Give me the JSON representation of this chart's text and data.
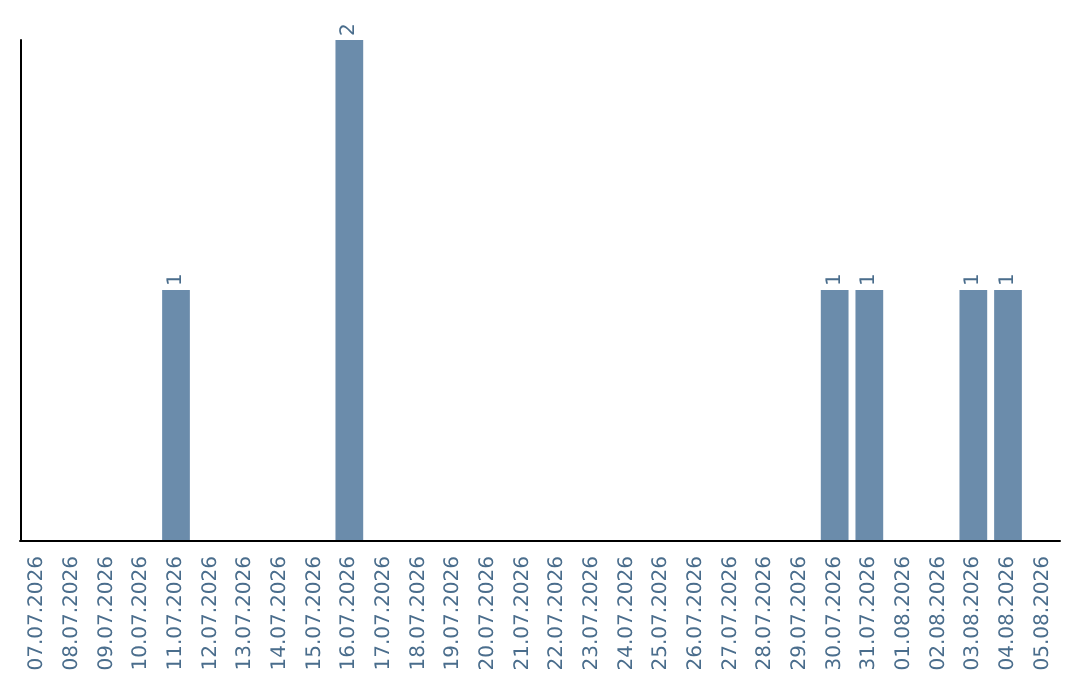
{
  "chart_data": {
    "type": "bar",
    "categories": [
      "07.07.2026",
      "08.07.2026",
      "09.07.2026",
      "10.07.2026",
      "11.07.2026",
      "12.07.2026",
      "13.07.2026",
      "14.07.2026",
      "15.07.2026",
      "16.07.2026",
      "17.07.2026",
      "18.07.2026",
      "19.07.2026",
      "20.07.2026",
      "21.07.2026",
      "22.07.2026",
      "23.07.2026",
      "24.07.2026",
      "25.07.2026",
      "26.07.2026",
      "27.07.2026",
      "28.07.2026",
      "29.07.2026",
      "30.07.2026",
      "31.07.2026",
      "01.08.2026",
      "02.08.2026",
      "03.08.2026",
      "04.08.2026",
      "05.08.2026"
    ],
    "values": [
      0,
      0,
      0,
      0,
      1,
      0,
      0,
      0,
      0,
      2,
      0,
      0,
      0,
      0,
      0,
      0,
      0,
      0,
      0,
      0,
      0,
      0,
      0,
      1,
      1,
      0,
      0,
      1,
      1,
      0
    ],
    "value_labels": [
      null,
      null,
      null,
      null,
      "1",
      null,
      null,
      null,
      null,
      "2",
      null,
      null,
      null,
      null,
      null,
      null,
      null,
      null,
      null,
      null,
      null,
      null,
      null,
      "1",
      "1",
      null,
      null,
      "1",
      "1",
      null
    ],
    "color": "#6b8cab",
    "grid": false
  }
}
